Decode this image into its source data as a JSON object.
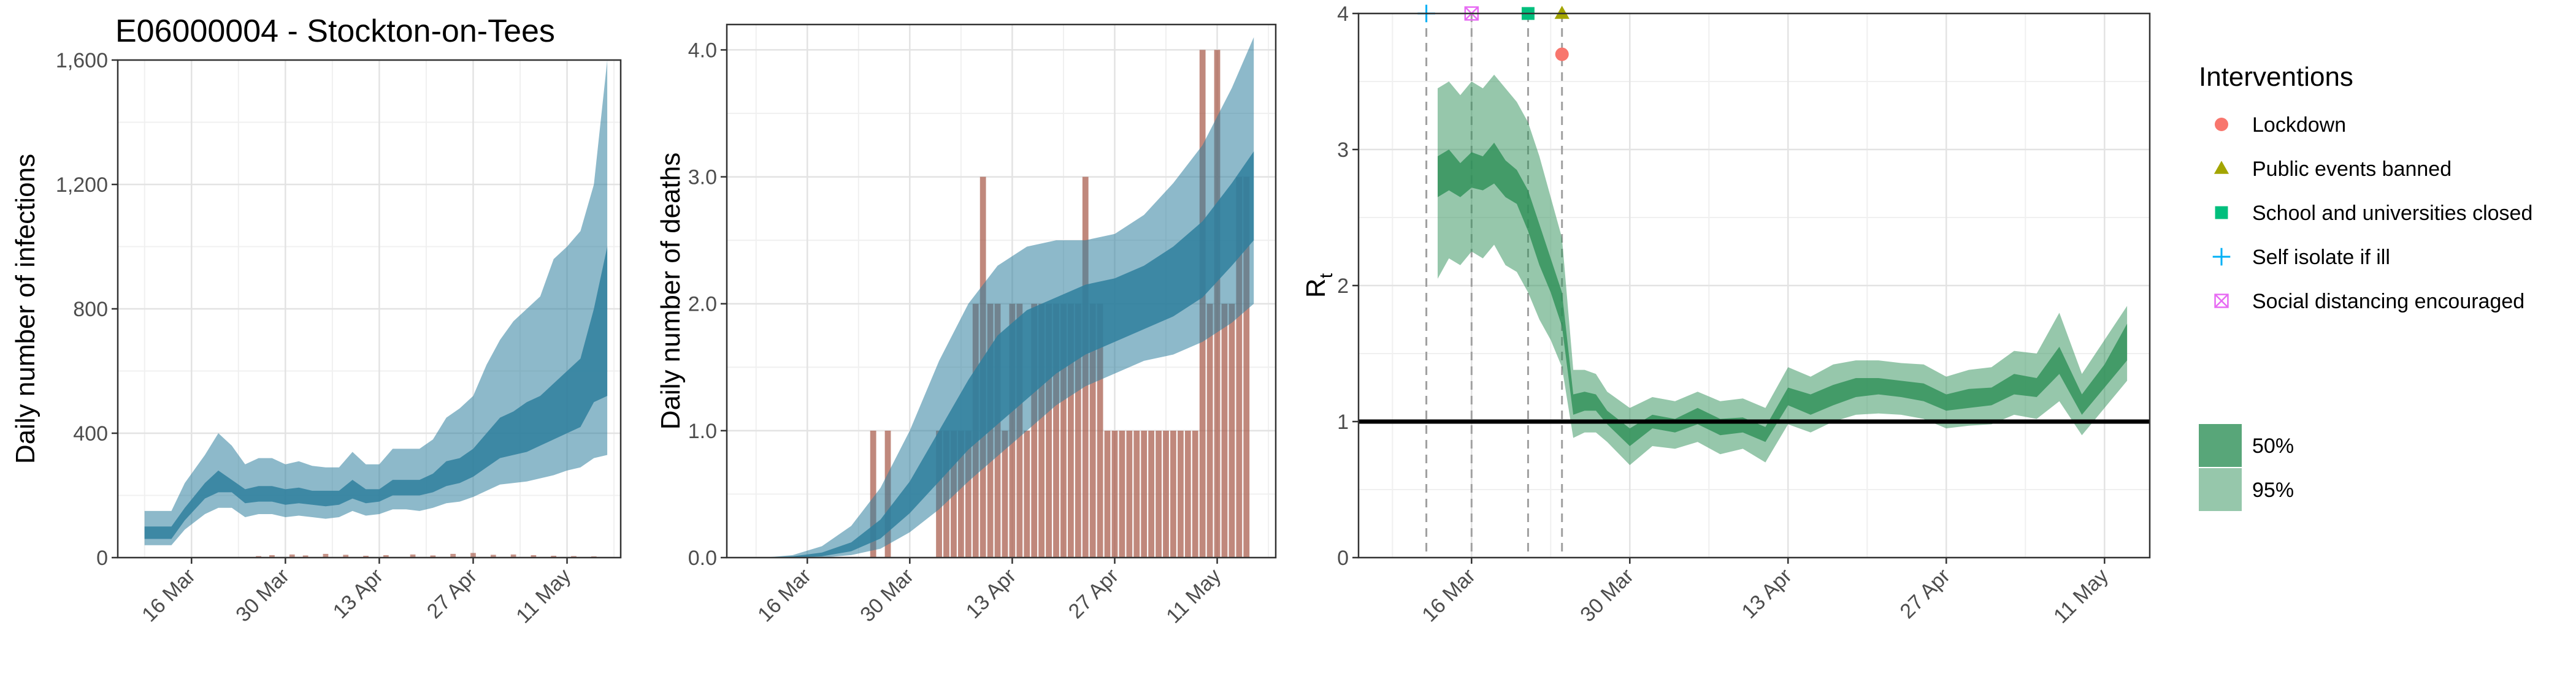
{
  "title": "E06000004 - Stockton-on-Tees",
  "colors": {
    "infections_fill": "#2f7f9e",
    "deaths_bar": "#a85a4a",
    "rt_fill": "#2e9057",
    "rt_threshold_line": "#000000",
    "lockdown": "#f8766d",
    "public_events": "#a3a500",
    "schools": "#00bf7d",
    "self_isolate": "#00b0f6",
    "social_distancing": "#e76bf3"
  },
  "chart_data": [
    {
      "type": "area",
      "name": "infections",
      "ylabel": "Daily number of infections",
      "xlabel": "",
      "xlim": [
        "2020-03-05",
        "2020-05-19"
      ],
      "ylim": [
        0,
        1600
      ],
      "yticks": [
        0,
        400,
        800,
        1200,
        1600
      ],
      "ytick_labels": [
        "0",
        "400",
        "800",
        "1,200",
        "1,600"
      ],
      "xticks": [
        "2020-03-16",
        "2020-03-30",
        "2020-04-13",
        "2020-04-27",
        "2020-05-11"
      ],
      "xtick_labels": [
        "16 Mar",
        "30 Mar",
        "13 Apr",
        "27 Apr",
        "11 May"
      ],
      "grid": true,
      "x": [
        "2020-03-09",
        "2020-03-13",
        "2020-03-15",
        "2020-03-18",
        "2020-03-20",
        "2020-03-22",
        "2020-03-24",
        "2020-03-26",
        "2020-03-28",
        "2020-03-30",
        "2020-04-01",
        "2020-04-03",
        "2020-04-05",
        "2020-04-07",
        "2020-04-09",
        "2020-04-11",
        "2020-04-13",
        "2020-04-15",
        "2020-04-17",
        "2020-04-19",
        "2020-04-21",
        "2020-04-23",
        "2020-04-25",
        "2020-04-27",
        "2020-04-29",
        "2020-05-01",
        "2020-05-03",
        "2020-05-05",
        "2020-05-07",
        "2020-05-09",
        "2020-05-11",
        "2020-05-13",
        "2020-05-15",
        "2020-05-17"
      ],
      "ci50_lower": [
        60,
        60,
        120,
        190,
        210,
        210,
        175,
        180,
        180,
        170,
        175,
        170,
        165,
        170,
        190,
        175,
        180,
        200,
        200,
        200,
        210,
        230,
        240,
        260,
        290,
        320,
        330,
        340,
        360,
        380,
        400,
        420,
        500,
        520
      ],
      "ci50_upper": [
        100,
        100,
        160,
        240,
        280,
        250,
        220,
        230,
        230,
        220,
        225,
        215,
        215,
        215,
        250,
        220,
        220,
        250,
        250,
        250,
        270,
        310,
        320,
        350,
        400,
        450,
        470,
        500,
        520,
        560,
        600,
        640,
        800,
        1000
      ],
      "ci95_lower": [
        40,
        40,
        90,
        140,
        160,
        160,
        130,
        140,
        140,
        130,
        135,
        130,
        125,
        130,
        150,
        135,
        140,
        155,
        155,
        150,
        160,
        175,
        180,
        195,
        215,
        235,
        240,
        245,
        255,
        265,
        280,
        290,
        320,
        330
      ],
      "ci95_upper": [
        150,
        150,
        240,
        330,
        400,
        360,
        300,
        320,
        320,
        300,
        310,
        295,
        290,
        290,
        340,
        300,
        300,
        350,
        350,
        350,
        380,
        450,
        480,
        520,
        620,
        700,
        760,
        800,
        840,
        960,
        1000,
        1050,
        1200,
        1600
      ],
      "cases_x": [
        "2020-03-26",
        "2020-03-28",
        "2020-03-31",
        "2020-04-02",
        "2020-04-05",
        "2020-04-08",
        "2020-04-11",
        "2020-04-14",
        "2020-04-18",
        "2020-04-21",
        "2020-04-24",
        "2020-04-27",
        "2020-04-30",
        "2020-05-03",
        "2020-05-06",
        "2020-05-09",
        "2020-05-12",
        "2020-05-15"
      ],
      "cases": [
        5,
        8,
        10,
        7,
        12,
        9,
        6,
        8,
        10,
        7,
        12,
        15,
        9,
        10,
        8,
        6,
        5,
        4
      ]
    },
    {
      "type": "bar",
      "name": "deaths",
      "ylabel": "Daily number of deaths",
      "xlabel": "",
      "xlim": [
        "2020-03-05",
        "2020-05-19"
      ],
      "ylim": [
        0,
        4.2
      ],
      "yticks": [
        0,
        1,
        2,
        3,
        4
      ],
      "ytick_labels": [
        "0.0",
        "1.0",
        "2.0",
        "3.0",
        "4.0"
      ],
      "xticks": [
        "2020-03-16",
        "2020-03-30",
        "2020-04-13",
        "2020-04-27",
        "2020-05-11"
      ],
      "xtick_labels": [
        "16 Mar",
        "30 Mar",
        "13 Apr",
        "27 Apr",
        "11 May"
      ],
      "grid": true,
      "bars": [
        {
          "x": "2020-03-25",
          "value": 1
        },
        {
          "x": "2020-03-27",
          "value": 1
        },
        {
          "x": "2020-04-03",
          "value": 1
        },
        {
          "x": "2020-04-04",
          "value": 1
        },
        {
          "x": "2020-04-05",
          "value": 1
        },
        {
          "x": "2020-04-06",
          "value": 1
        },
        {
          "x": "2020-04-07",
          "value": 1
        },
        {
          "x": "2020-04-08",
          "value": 2
        },
        {
          "x": "2020-04-09",
          "value": 3
        },
        {
          "x": "2020-04-10",
          "value": 2
        },
        {
          "x": "2020-04-11",
          "value": 2
        },
        {
          "x": "2020-04-12",
          "value": 1
        },
        {
          "x": "2020-04-13",
          "value": 2
        },
        {
          "x": "2020-04-14",
          "value": 2
        },
        {
          "x": "2020-04-15",
          "value": 1
        },
        {
          "x": "2020-04-16",
          "value": 2
        },
        {
          "x": "2020-04-17",
          "value": 2
        },
        {
          "x": "2020-04-18",
          "value": 2
        },
        {
          "x": "2020-04-19",
          "value": 2
        },
        {
          "x": "2020-04-20",
          "value": 2
        },
        {
          "x": "2020-04-21",
          "value": 2
        },
        {
          "x": "2020-04-22",
          "value": 2
        },
        {
          "x": "2020-04-23",
          "value": 3
        },
        {
          "x": "2020-04-24",
          "value": 2
        },
        {
          "x": "2020-04-25",
          "value": 2
        },
        {
          "x": "2020-04-26",
          "value": 1
        },
        {
          "x": "2020-04-27",
          "value": 1
        },
        {
          "x": "2020-04-28",
          "value": 1
        },
        {
          "x": "2020-04-29",
          "value": 1
        },
        {
          "x": "2020-04-30",
          "value": 1
        },
        {
          "x": "2020-05-01",
          "value": 1
        },
        {
          "x": "2020-05-02",
          "value": 1
        },
        {
          "x": "2020-05-03",
          "value": 1
        },
        {
          "x": "2020-05-04",
          "value": 1
        },
        {
          "x": "2020-05-05",
          "value": 1
        },
        {
          "x": "2020-05-06",
          "value": 1
        },
        {
          "x": "2020-05-07",
          "value": 1
        },
        {
          "x": "2020-05-08",
          "value": 1
        },
        {
          "x": "2020-05-09",
          "value": 4
        },
        {
          "x": "2020-05-10",
          "value": 2
        },
        {
          "x": "2020-05-11",
          "value": 4
        },
        {
          "x": "2020-05-12",
          "value": 2
        },
        {
          "x": "2020-05-13",
          "value": 2
        },
        {
          "x": "2020-05-14",
          "value": 3
        },
        {
          "x": "2020-05-15",
          "value": 3
        }
      ],
      "x": [
        "2020-03-10",
        "2020-03-14",
        "2020-03-18",
        "2020-03-22",
        "2020-03-26",
        "2020-03-30",
        "2020-04-03",
        "2020-04-07",
        "2020-04-11",
        "2020-04-15",
        "2020-04-19",
        "2020-04-23",
        "2020-04-27",
        "2020-05-01",
        "2020-05-05",
        "2020-05-09",
        "2020-05-13",
        "2020-05-16"
      ],
      "ci50_lower": [
        0,
        0,
        0.01,
        0.05,
        0.15,
        0.35,
        0.6,
        0.85,
        1.05,
        1.25,
        1.45,
        1.6,
        1.7,
        1.8,
        1.9,
        2.05,
        2.3,
        2.5
      ],
      "ci50_upper": [
        0,
        0.01,
        0.04,
        0.12,
        0.3,
        0.6,
        1.0,
        1.4,
        1.75,
        1.95,
        2.05,
        2.15,
        2.2,
        2.3,
        2.45,
        2.65,
        2.95,
        3.2
      ],
      "ci95_lower": [
        0,
        0,
        0,
        0.02,
        0.07,
        0.2,
        0.38,
        0.6,
        0.8,
        1.0,
        1.2,
        1.35,
        1.45,
        1.55,
        1.6,
        1.7,
        1.85,
        2.0
      ],
      "ci95_upper": [
        0,
        0.02,
        0.09,
        0.25,
        0.55,
        1.0,
        1.55,
        2.0,
        2.3,
        2.45,
        2.5,
        2.5,
        2.55,
        2.7,
        2.95,
        3.25,
        3.7,
        4.1
      ]
    },
    {
      "type": "area",
      "name": "rt",
      "ylabel": "R",
      "ylabel_subscript": "t",
      "xlabel": "",
      "xlim": [
        "2020-03-06",
        "2020-05-15"
      ],
      "ylim": [
        0,
        4
      ],
      "yticks": [
        0,
        1,
        2,
        3,
        4
      ],
      "ytick_labels": [
        "0",
        "1",
        "2",
        "3",
        "4"
      ],
      "xticks": [
        "2020-03-16",
        "2020-03-30",
        "2020-04-13",
        "2020-04-27",
        "2020-05-11"
      ],
      "xtick_labels": [
        "16 Mar",
        "30 Mar",
        "13 Apr",
        "27 Apr",
        "11 May"
      ],
      "grid": true,
      "threshold": 1,
      "x": [
        "2020-03-13",
        "2020-03-14",
        "2020-03-15",
        "2020-03-16",
        "2020-03-17",
        "2020-03-18",
        "2020-03-19",
        "2020-03-20",
        "2020-03-21",
        "2020-03-22",
        "2020-03-23",
        "2020-03-24",
        "2020-03-25",
        "2020-03-26",
        "2020-03-27",
        "2020-03-28",
        "2020-03-30",
        "2020-04-01",
        "2020-04-03",
        "2020-04-05",
        "2020-04-07",
        "2020-04-09",
        "2020-04-11",
        "2020-04-13",
        "2020-04-15",
        "2020-04-17",
        "2020-04-19",
        "2020-04-21",
        "2020-04-23",
        "2020-04-25",
        "2020-04-27",
        "2020-04-29",
        "2020-05-01",
        "2020-05-03",
        "2020-05-05",
        "2020-05-07",
        "2020-05-09",
        "2020-05-11",
        "2020-05-13"
      ],
      "ci50_lower": [
        2.65,
        2.7,
        2.65,
        2.72,
        2.7,
        2.75,
        2.65,
        2.6,
        2.4,
        2.15,
        1.95,
        1.7,
        1.05,
        1.08,
        1.08,
        0.98,
        0.82,
        0.95,
        0.92,
        0.98,
        0.9,
        0.92,
        0.85,
        1.12,
        1.05,
        1.12,
        1.18,
        1.2,
        1.18,
        1.15,
        1.08,
        1.1,
        1.12,
        1.2,
        1.18,
        1.35,
        1.05,
        1.25,
        1.45
      ],
      "ci50_upper": [
        2.95,
        3.0,
        2.9,
        2.98,
        2.95,
        3.05,
        2.92,
        2.85,
        2.7,
        2.45,
        2.2,
        1.95,
        1.2,
        1.22,
        1.2,
        1.08,
        0.95,
        1.05,
        1.02,
        1.1,
        1.02,
        1.03,
        0.96,
        1.25,
        1.2,
        1.27,
        1.32,
        1.32,
        1.3,
        1.28,
        1.2,
        1.24,
        1.25,
        1.35,
        1.32,
        1.55,
        1.2,
        1.42,
        1.72
      ],
      "ci95_lower": [
        2.05,
        2.2,
        2.15,
        2.25,
        2.2,
        2.3,
        2.15,
        2.1,
        1.95,
        1.75,
        1.6,
        1.4,
        0.88,
        0.92,
        0.92,
        0.85,
        0.68,
        0.82,
        0.8,
        0.85,
        0.76,
        0.8,
        0.7,
        0.98,
        0.92,
        1.0,
        1.05,
        1.06,
        1.05,
        1.02,
        0.95,
        0.97,
        0.98,
        1.05,
        1.02,
        1.15,
        0.9,
        1.1,
        1.3
      ],
      "ci95_upper": [
        3.45,
        3.5,
        3.4,
        3.5,
        3.45,
        3.55,
        3.45,
        3.35,
        3.2,
        2.95,
        2.65,
        2.35,
        1.38,
        1.38,
        1.35,
        1.22,
        1.1,
        1.18,
        1.15,
        1.22,
        1.15,
        1.17,
        1.1,
        1.4,
        1.33,
        1.42,
        1.45,
        1.45,
        1.43,
        1.42,
        1.33,
        1.38,
        1.4,
        1.52,
        1.5,
        1.8,
        1.35,
        1.6,
        1.85
      ],
      "interventions": [
        {
          "label": "Self isolate if ill",
          "date": "2020-03-12",
          "y": 4.0,
          "shape": "plus",
          "color_key": "self_isolate"
        },
        {
          "label": "Social distancing encouraged",
          "date": "2020-03-16",
          "y": 4.0,
          "shape": "boxx",
          "color_key": "social_distancing"
        },
        {
          "label": "School and universities closed",
          "date": "2020-03-21",
          "y": 4.0,
          "shape": "square",
          "color_key": "schools"
        },
        {
          "label": "Public events banned",
          "date": "2020-03-24",
          "y": 4.0,
          "shape": "triangle",
          "color_key": "public_events"
        },
        {
          "label": "Lockdown",
          "date": "2020-03-24",
          "y": 3.7,
          "shape": "circle",
          "color_key": "lockdown"
        }
      ]
    }
  ],
  "legend": {
    "title": "Interventions",
    "items": [
      {
        "label": "Lockdown",
        "shape": "circle",
        "color_key": "lockdown"
      },
      {
        "label": "Public events banned",
        "shape": "triangle",
        "color_key": "public_events"
      },
      {
        "label": "School and universities closed",
        "shape": "square",
        "color_key": "schools"
      },
      {
        "label": "Self isolate if ill",
        "shape": "plus",
        "color_key": "self_isolate"
      },
      {
        "label": "Social distancing encouraged",
        "shape": "boxx",
        "color_key": "social_distancing"
      }
    ],
    "ci_items": [
      {
        "label": "50%",
        "opacity": 0.8
      },
      {
        "label": "95%",
        "opacity": 0.5
      }
    ]
  }
}
